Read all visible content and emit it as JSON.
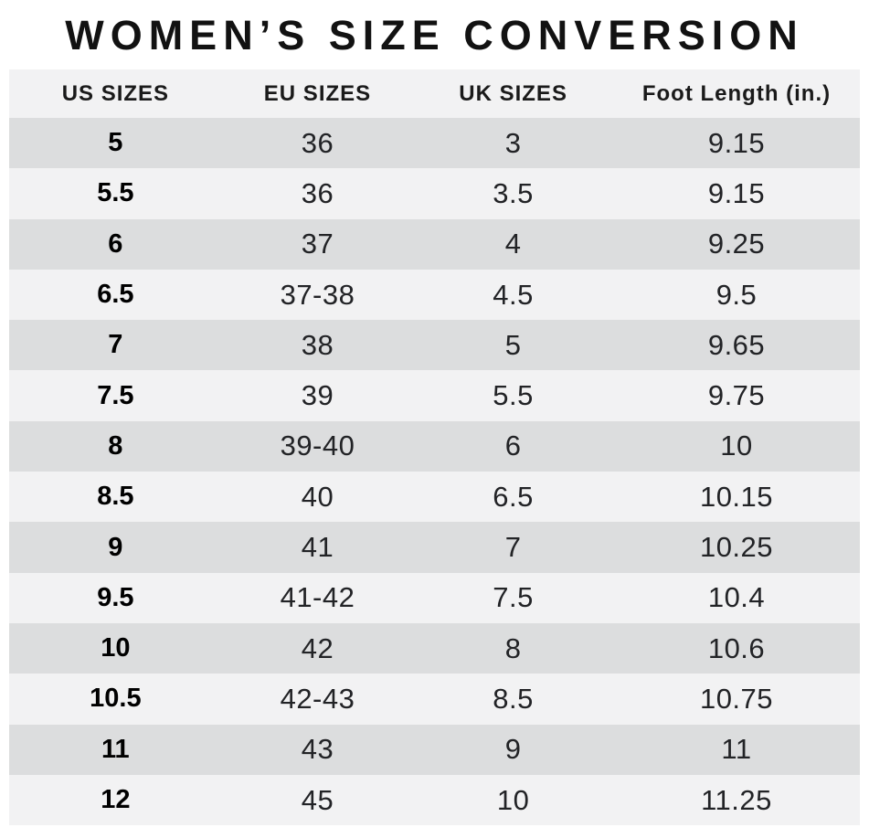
{
  "title": "WOMEN’S SIZE CONVERSION",
  "chart_data": {
    "type": "table",
    "title": "WOMEN’S SIZE CONVERSION",
    "columns": [
      "US SIZES",
      "EU SIZES",
      "UK SIZES",
      "Foot Length (in.)"
    ],
    "rows": [
      [
        "5",
        "36",
        "3",
        "9.15"
      ],
      [
        "5.5",
        "36",
        "3.5",
        "9.15"
      ],
      [
        "6",
        "37",
        "4",
        "9.25"
      ],
      [
        "6.5",
        "37-38",
        "4.5",
        "9.5"
      ],
      [
        "7",
        "38",
        "5",
        "9.65"
      ],
      [
        "7.5",
        "39",
        "5.5",
        "9.75"
      ],
      [
        "8",
        "39-40",
        "6",
        "10"
      ],
      [
        "8.5",
        "40",
        "6.5",
        "10.15"
      ],
      [
        "9",
        "41",
        "7",
        "10.25"
      ],
      [
        "9.5",
        "41-42",
        "7.5",
        "10.4"
      ],
      [
        "10",
        "42",
        "8",
        "10.6"
      ],
      [
        "10.5",
        "42-43",
        "8.5",
        "10.75"
      ],
      [
        "11",
        "43",
        "9",
        "11"
      ],
      [
        "12",
        "45",
        "10",
        "11.25"
      ]
    ]
  },
  "colors": {
    "row_dark": "#dcddde",
    "row_light": "#f2f2f3",
    "header_bg": "#f2f2f3",
    "title_text": "#121212",
    "cell_text": "#222326",
    "background": "#ffffff"
  }
}
